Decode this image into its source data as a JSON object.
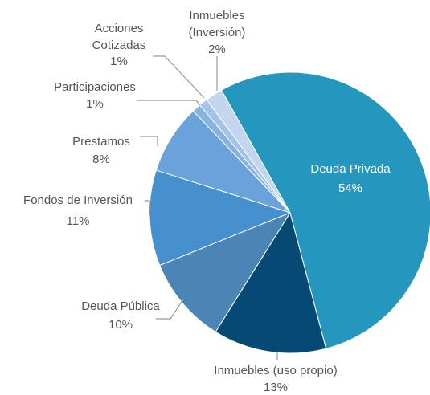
{
  "chart_data": {
    "type": "pie",
    "categories": [
      "Deuda Privada",
      "Inmuebles (uso propio)",
      "Deuda Pública",
      "Fondos de Inversión",
      "Prestamos",
      "Participaciones",
      "Acciones Cotizadas",
      "Inmuebles (Inversión)"
    ],
    "values": [
      54,
      13,
      10,
      11,
      8,
      1,
      1,
      2
    ],
    "value_labels": [
      "54%",
      "13%",
      "10%",
      "11%",
      "8%",
      "1%",
      "1%",
      "2%"
    ],
    "colors": [
      "#2596be",
      "#044a74",
      "#4b85b5",
      "#4790cf",
      "#6aa3d9",
      "#86b3e0",
      "#a3c4e8",
      "#c3d6ee"
    ]
  }
}
